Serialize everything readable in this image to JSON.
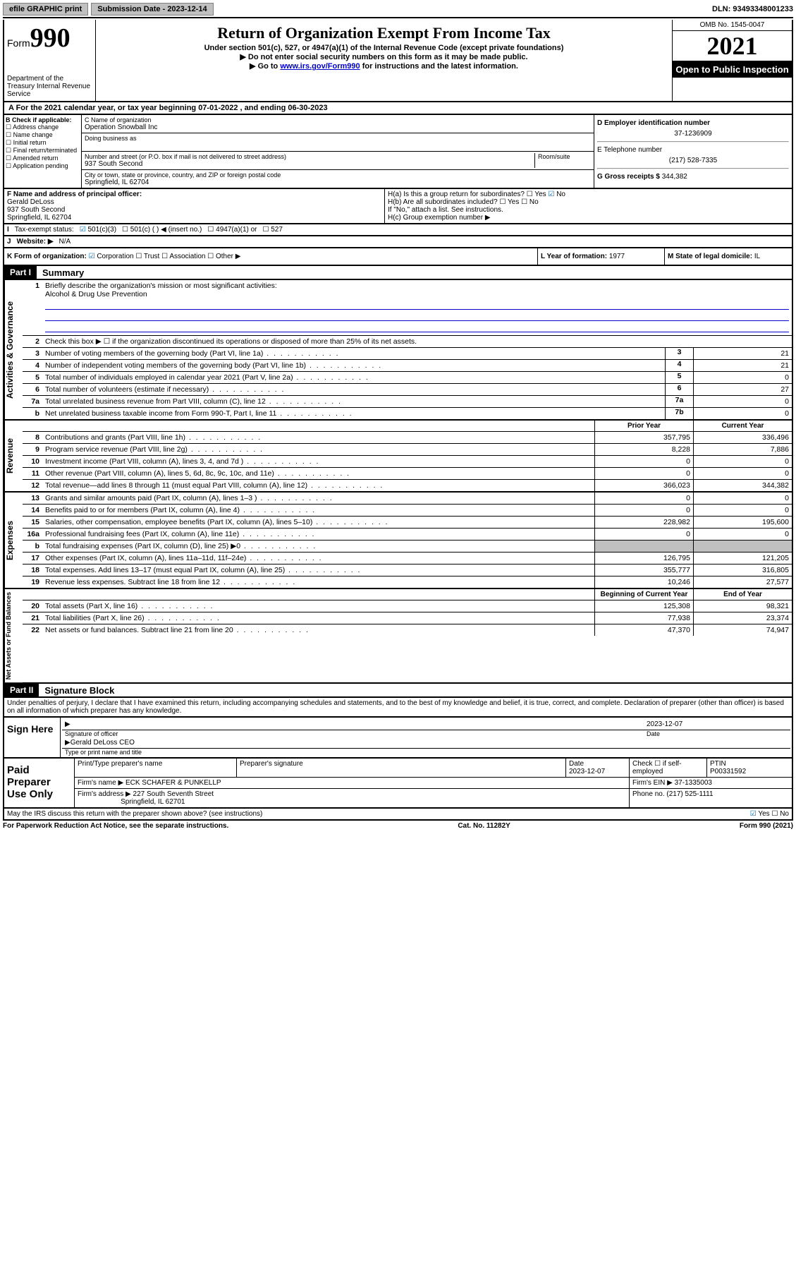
{
  "topbar": {
    "efile": "efile GRAPHIC print",
    "submission_label": "Submission Date - 2023-12-14",
    "dln": "DLN: 93493348001233"
  },
  "header": {
    "form_prefix": "Form",
    "form_number": "990",
    "title": "Return of Organization Exempt From Income Tax",
    "subtitle": "Under section 501(c), 527, or 4947(a)(1) of the Internal Revenue Code (except private foundations)",
    "note1": "Do not enter social security numbers on this form as it may be made public.",
    "note2_pre": "Go to ",
    "note2_link": "www.irs.gov/Form990",
    "note2_post": " for instructions and the latest information.",
    "dept": "Department of the Treasury\nInternal Revenue Service",
    "omb": "OMB No. 1545-0047",
    "year": "2021",
    "inspection": "Open to Public Inspection"
  },
  "row_a": "A For the 2021 calendar year, or tax year beginning 07-01-2022  , and ending 06-30-2023",
  "section_b": {
    "label": "B Check if applicable:",
    "items": [
      "Address change",
      "Name change",
      "Initial return",
      "Final return/terminated",
      "Amended return",
      "Application pending"
    ]
  },
  "section_c": {
    "name_label": "C Name of organization",
    "name": "Operation Snowball Inc",
    "dba_label": "Doing business as",
    "addr_label": "Number and street (or P.O. box if mail is not delivered to street address)",
    "room_label": "Room/suite",
    "addr": "937 South Second",
    "city_label": "City or town, state or province, country, and ZIP or foreign postal code",
    "city": "Springfield, IL  62704"
  },
  "section_d": {
    "ein_label": "D Employer identification number",
    "ein": "37-1236909",
    "phone_label": "E Telephone number",
    "phone": "(217) 528-7335",
    "gross_label": "G Gross receipts $",
    "gross": "344,382"
  },
  "section_f": {
    "f_label": "F Name and address of principal officer:",
    "f_name": "Gerald DeLoss",
    "f_addr1": "937 South Second",
    "f_addr2": "Springfield, IL  62704",
    "i_label": "Tax-exempt status:",
    "i_opts": [
      "501(c)(3)",
      "501(c) (  ) ◀ (insert no.)",
      "4947(a)(1) or",
      "527"
    ],
    "j_label": "Website: ▶",
    "j_val": "N/A"
  },
  "section_h": {
    "ha": "H(a)  Is this a group return for subordinates?",
    "hb": "H(b)  Are all subordinates included?",
    "hb_note": "If \"No,\" attach a list. See instructions.",
    "hc": "H(c)  Group exemption number ▶",
    "yes": "Yes",
    "no": "No"
  },
  "section_k": {
    "k_label": "K Form of organization:",
    "opts": [
      "Corporation",
      "Trust",
      "Association",
      "Other ▶"
    ],
    "l_label": "L Year of formation: ",
    "l_val": "1977",
    "m_label": "M State of legal domicile: ",
    "m_val": "IL"
  },
  "part1": {
    "header": "Part I",
    "title": "Summary",
    "line1_label": "Briefly describe the organization's mission or most significant activities:",
    "line1_val": "Alcohol & Drug Use Prevention",
    "line2": "Check this box ▶ ☐  if the organization discontinued its operations or disposed of more than 25% of its net assets.",
    "sides": {
      "gov": "Activities & Governance",
      "rev": "Revenue",
      "exp": "Expenses",
      "net": "Net Assets or Fund Balances"
    },
    "lines_gov": [
      {
        "n": "3",
        "t": "Number of voting members of the governing body (Part VI, line 1a)",
        "box": "3",
        "v": "21"
      },
      {
        "n": "4",
        "t": "Number of independent voting members of the governing body (Part VI, line 1b)",
        "box": "4",
        "v": "21"
      },
      {
        "n": "5",
        "t": "Total number of individuals employed in calendar year 2021 (Part V, line 2a)",
        "box": "5",
        "v": "0"
      },
      {
        "n": "6",
        "t": "Total number of volunteers (estimate if necessary)",
        "box": "6",
        "v": "27"
      },
      {
        "n": "7a",
        "t": "Total unrelated business revenue from Part VIII, column (C), line 12",
        "box": "7a",
        "v": "0"
      },
      {
        "n": "b",
        "t": "Net unrelated business taxable income from Form 990-T, Part I, line 11",
        "box": "7b",
        "v": "0"
      }
    ],
    "col_hdr_prior": "Prior Year",
    "col_hdr_current": "Current Year",
    "lines_rev": [
      {
        "n": "8",
        "t": "Contributions and grants (Part VIII, line 1h)",
        "p": "357,795",
        "c": "336,496"
      },
      {
        "n": "9",
        "t": "Program service revenue (Part VIII, line 2g)",
        "p": "8,228",
        "c": "7,886"
      },
      {
        "n": "10",
        "t": "Investment income (Part VIII, column (A), lines 3, 4, and 7d )",
        "p": "0",
        "c": "0"
      },
      {
        "n": "11",
        "t": "Other revenue (Part VIII, column (A), lines 5, 6d, 8c, 9c, 10c, and 11e)",
        "p": "0",
        "c": "0"
      },
      {
        "n": "12",
        "t": "Total revenue—add lines 8 through 11 (must equal Part VIII, column (A), line 12)",
        "p": "366,023",
        "c": "344,382"
      }
    ],
    "lines_exp": [
      {
        "n": "13",
        "t": "Grants and similar amounts paid (Part IX, column (A), lines 1–3 )",
        "p": "0",
        "c": "0"
      },
      {
        "n": "14",
        "t": "Benefits paid to or for members (Part IX, column (A), line 4)",
        "p": "0",
        "c": "0"
      },
      {
        "n": "15",
        "t": "Salaries, other compensation, employee benefits (Part IX, column (A), lines 5–10)",
        "p": "228,982",
        "c": "195,600"
      },
      {
        "n": "16a",
        "t": "Professional fundraising fees (Part IX, column (A), line 11e)",
        "p": "0",
        "c": "0"
      },
      {
        "n": "b",
        "t": "Total fundraising expenses (Part IX, column (D), line 25) ▶0",
        "p": "",
        "c": "",
        "shaded": true
      },
      {
        "n": "17",
        "t": "Other expenses (Part IX, column (A), lines 11a–11d, 11f–24e)",
        "p": "126,795",
        "c": "121,205"
      },
      {
        "n": "18",
        "t": "Total expenses. Add lines 13–17 (must equal Part IX, column (A), line 25)",
        "p": "355,777",
        "c": "316,805"
      },
      {
        "n": "19",
        "t": "Revenue less expenses. Subtract line 18 from line 12",
        "p": "10,246",
        "c": "27,577"
      }
    ],
    "col_hdr_begin": "Beginning of Current Year",
    "col_hdr_end": "End of Year",
    "lines_net": [
      {
        "n": "20",
        "t": "Total assets (Part X, line 16)",
        "p": "125,308",
        "c": "98,321"
      },
      {
        "n": "21",
        "t": "Total liabilities (Part X, line 26)",
        "p": "77,938",
        "c": "23,374"
      },
      {
        "n": "22",
        "t": "Net assets or fund balances. Subtract line 21 from line 20",
        "p": "47,370",
        "c": "74,947"
      }
    ]
  },
  "part2": {
    "header": "Part II",
    "title": "Signature Block",
    "declaration": "Under penalties of perjury, I declare that I have examined this return, including accompanying schedules and statements, and to the best of my knowledge and belief, it is true, correct, and complete. Declaration of preparer (other than officer) is based on all information of which preparer has any knowledge.",
    "sign_here": "Sign Here",
    "sig_officer": "Signature of officer",
    "sig_date_label": "Date",
    "sig_date": "2023-12-07",
    "sig_name": "Gerald DeLoss CEO",
    "sig_name_label": "Type or print name and title",
    "paid_prep": "Paid Preparer Use Only",
    "prep_cols": [
      "Print/Type preparer's name",
      "Preparer's signature",
      "Date",
      "",
      "PTIN"
    ],
    "prep_date": "2023-12-07",
    "prep_check": "Check ☐ if self-employed",
    "prep_ptin": "P00331592",
    "firm_name_label": "Firm's name    ▶",
    "firm_name": "ECK SCHAFER & PUNKELLP",
    "firm_ein_label": "Firm's EIN ▶",
    "firm_ein": "37-1335003",
    "firm_addr_label": "Firm's address ▶",
    "firm_addr1": "227 South Seventh Street",
    "firm_addr2": "Springfield, IL  62701",
    "firm_phone_label": "Phone no.",
    "firm_phone": "(217) 525-1111",
    "discuss": "May the IRS discuss this return with the preparer shown above? (see instructions)",
    "discuss_yes": "Yes",
    "discuss_no": "No"
  },
  "footer": {
    "pra": "For Paperwork Reduction Act Notice, see the separate instructions.",
    "cat": "Cat. No. 11282Y",
    "form": "Form 990 (2021)"
  }
}
